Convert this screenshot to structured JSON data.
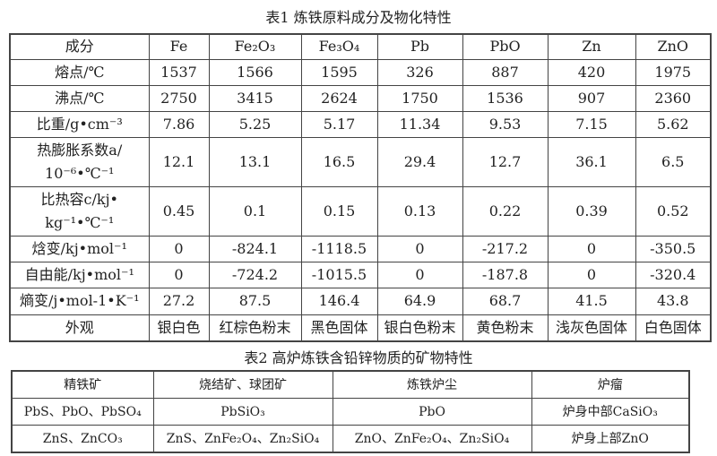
{
  "table1": {
    "title": "表1 炼铁原料成分及物化特性",
    "header": [
      "成分",
      "Fe",
      "Fe₂O₃",
      "Fe₃O₄",
      "Pb",
      "PbO",
      "Zn",
      "ZnO"
    ],
    "rows": [
      [
        "熔点/℃",
        "1537",
        "1566",
        "1595",
        "326",
        "887",
        "420",
        "1975"
      ],
      [
        "沸点/℃",
        "2750",
        "3415",
        "2624",
        "1750",
        "1536",
        "907",
        "2360"
      ],
      [
        "比重/g•cm⁻³",
        "7.86",
        "5.25",
        "5.17",
        "11.34",
        "9.53",
        "7.15",
        "5.62"
      ],
      [
        "热膨胀系数a/ 10⁻⁶•℃⁻¹",
        "12.1",
        "13.1",
        "16.5",
        "29.4",
        "12.7",
        "36.1",
        "6.5"
      ],
      [
        "比热容c/kj• kg⁻¹•℃⁻¹",
        "0.45",
        "0.1",
        "0.15",
        "0.13",
        "0.22",
        "0.39",
        "0.52"
      ],
      [
        "焓变/kj•mol⁻¹",
        "0",
        "-824.1",
        "-1118.5",
        "0",
        "-217.2",
        "0",
        "-350.5"
      ],
      [
        "自由能/kj•mol⁻¹",
        "0",
        "-724.2",
        "-1015.5",
        "0",
        "-187.8",
        "0",
        "-320.4"
      ],
      [
        "熵变/j•mol-1•K⁻¹",
        "27.2",
        "87.5",
        "146.4",
        "64.9",
        "68.7",
        "41.5",
        "43.8"
      ],
      [
        "外观",
        "银白色",
        "红棕色粉末",
        "黑色固体",
        "银白色粉末",
        "黄色粉末",
        "浅灰色固体",
        "白色固体"
      ]
    ]
  },
  "table2": {
    "title": "表2 高炉炼铁含铅锌物质的矿物特性",
    "header": [
      "精铁矿",
      "烧结矿、球团矿",
      "炼铁炉尘",
      "炉瘤"
    ],
    "rows": [
      [
        "PbS、PbO、PbSO₄",
        "PbSiO₃",
        "PbO",
        "炉身中部CaSiO₃"
      ],
      [
        "ZnS、ZnCO₃",
        "ZnS、ZnFe₂O₄、Zn₂SiO₄",
        "ZnO、ZnFe₂O₄、Zn₂SiO₄",
        "炉身上部ZnO"
      ]
    ]
  }
}
